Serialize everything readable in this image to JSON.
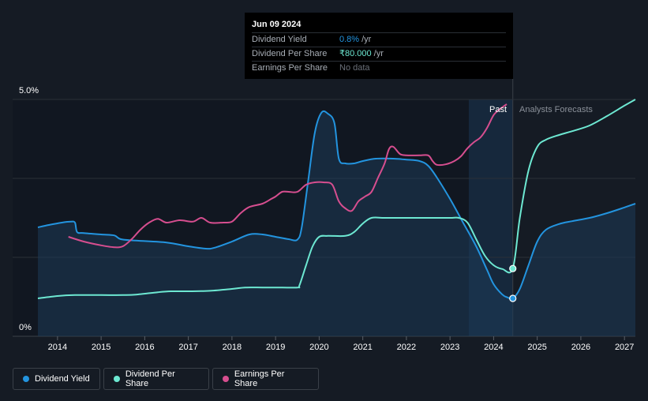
{
  "tooltip": {
    "date": "Jun 09 2024",
    "rows": [
      {
        "label": "Dividend Yield",
        "value": "0.8%",
        "unit": "/yr"
      },
      {
        "label": "Dividend Per Share",
        "value": "₹80.000",
        "unit": "/yr"
      },
      {
        "label": "Earnings Per Share",
        "value": "No data",
        "unit": ""
      }
    ]
  },
  "regions": {
    "past": "Past",
    "forecast": "Analysts Forecasts"
  },
  "legend": [
    {
      "label": "Dividend Yield",
      "color": "#2394df"
    },
    {
      "label": "Dividend Per Share",
      "color": "#6de8d2"
    },
    {
      "label": "Earnings Per Share",
      "color": "#d64e8f"
    }
  ],
  "chart_data": {
    "type": "line",
    "y_tick_labels": [
      "5.0%",
      "0%"
    ],
    "ylim": [
      0,
      5
    ],
    "xlim": [
      2013.55,
      2027.25
    ],
    "x_tick_labels": [
      "2014",
      "2015",
      "2016",
      "2017",
      "2018",
      "2019",
      "2020",
      "2021",
      "2022",
      "2023",
      "2024",
      "2025",
      "2026",
      "2027"
    ],
    "x_ticks": [
      2014,
      2015,
      2016,
      2017,
      2018,
      2019,
      2020,
      2021,
      2022,
      2023,
      2024,
      2025,
      2026,
      2027
    ],
    "past_end": 2024.44,
    "shade_start": 2023.43,
    "series": [
      {
        "name": "Dividend Yield",
        "color": "#2394df",
        "fill": true,
        "marker_x": 2024.44,
        "points": [
          [
            2013.55,
            2.3
          ],
          [
            2013.8,
            2.35
          ],
          [
            2014.1,
            2.4
          ],
          [
            2014.3,
            2.42
          ],
          [
            2014.4,
            2.4
          ],
          [
            2014.45,
            2.2
          ],
          [
            2014.6,
            2.18
          ],
          [
            2015.0,
            2.15
          ],
          [
            2015.3,
            2.13
          ],
          [
            2015.45,
            2.05
          ],
          [
            2015.8,
            2.02
          ],
          [
            2016.5,
            1.98
          ],
          [
            2017.0,
            1.9
          ],
          [
            2017.4,
            1.85
          ],
          [
            2017.6,
            1.87
          ],
          [
            2018.0,
            2.0
          ],
          [
            2018.4,
            2.15
          ],
          [
            2018.7,
            2.15
          ],
          [
            2019.0,
            2.1
          ],
          [
            2019.3,
            2.05
          ],
          [
            2019.5,
            2.04
          ],
          [
            2019.6,
            2.3
          ],
          [
            2019.75,
            3.3
          ],
          [
            2019.9,
            4.3
          ],
          [
            2020.05,
            4.72
          ],
          [
            2020.2,
            4.7
          ],
          [
            2020.35,
            4.5
          ],
          [
            2020.45,
            3.75
          ],
          [
            2020.6,
            3.65
          ],
          [
            2020.8,
            3.65
          ],
          [
            2021.0,
            3.7
          ],
          [
            2021.3,
            3.75
          ],
          [
            2021.7,
            3.75
          ],
          [
            2022.0,
            3.73
          ],
          [
            2022.3,
            3.7
          ],
          [
            2022.5,
            3.6
          ],
          [
            2022.7,
            3.35
          ],
          [
            2023.0,
            2.9
          ],
          [
            2023.3,
            2.4
          ],
          [
            2023.6,
            1.9
          ],
          [
            2023.85,
            1.4
          ],
          [
            2024.0,
            1.1
          ],
          [
            2024.2,
            0.88
          ],
          [
            2024.32,
            0.82
          ],
          [
            2024.44,
            0.8
          ],
          [
            2024.6,
            1.0
          ],
          [
            2024.8,
            1.5
          ],
          [
            2025.0,
            2.0
          ],
          [
            2025.2,
            2.25
          ],
          [
            2025.5,
            2.37
          ],
          [
            2025.8,
            2.43
          ],
          [
            2026.2,
            2.5
          ],
          [
            2026.6,
            2.6
          ],
          [
            2027.0,
            2.72
          ],
          [
            2027.25,
            2.8
          ]
        ]
      },
      {
        "name": "Dividend Per Share",
        "color": "#6de8d2",
        "fill": false,
        "marker_x": 2024.44,
        "points": [
          [
            2013.55,
            0.8
          ],
          [
            2014.0,
            0.85
          ],
          [
            2014.4,
            0.87
          ],
          [
            2015.0,
            0.87
          ],
          [
            2015.5,
            0.87
          ],
          [
            2015.8,
            0.88
          ],
          [
            2016.3,
            0.93
          ],
          [
            2016.6,
            0.95
          ],
          [
            2017.0,
            0.95
          ],
          [
            2017.5,
            0.96
          ],
          [
            2018.0,
            1.0
          ],
          [
            2018.3,
            1.03
          ],
          [
            2018.7,
            1.03
          ],
          [
            2019.0,
            1.03
          ],
          [
            2019.5,
            1.03
          ],
          [
            2019.55,
            1.08
          ],
          [
            2019.7,
            1.5
          ],
          [
            2019.85,
            1.9
          ],
          [
            2020.0,
            2.1
          ],
          [
            2020.2,
            2.12
          ],
          [
            2020.6,
            2.12
          ],
          [
            2020.8,
            2.2
          ],
          [
            2021.0,
            2.38
          ],
          [
            2021.2,
            2.5
          ],
          [
            2021.5,
            2.5
          ],
          [
            2022.0,
            2.5
          ],
          [
            2022.5,
            2.5
          ],
          [
            2023.0,
            2.5
          ],
          [
            2023.2,
            2.5
          ],
          [
            2023.4,
            2.4
          ],
          [
            2023.6,
            2.05
          ],
          [
            2023.8,
            1.7
          ],
          [
            2024.0,
            1.5
          ],
          [
            2024.2,
            1.42
          ],
          [
            2024.44,
            1.43
          ],
          [
            2024.6,
            2.5
          ],
          [
            2024.8,
            3.5
          ],
          [
            2025.0,
            4.0
          ],
          [
            2025.2,
            4.15
          ],
          [
            2025.5,
            4.25
          ],
          [
            2025.8,
            4.33
          ],
          [
            2026.2,
            4.45
          ],
          [
            2026.6,
            4.65
          ],
          [
            2027.0,
            4.87
          ],
          [
            2027.25,
            5.0
          ]
        ]
      },
      {
        "name": "Earnings Per Share",
        "color": "#d64e8f",
        "fill": false,
        "points": [
          [
            2014.25,
            2.1
          ],
          [
            2014.6,
            2.0
          ],
          [
            2015.0,
            1.92
          ],
          [
            2015.3,
            1.88
          ],
          [
            2015.5,
            1.9
          ],
          [
            2015.7,
            2.05
          ],
          [
            2015.9,
            2.25
          ],
          [
            2016.1,
            2.4
          ],
          [
            2016.3,
            2.48
          ],
          [
            2016.5,
            2.4
          ],
          [
            2016.8,
            2.45
          ],
          [
            2017.1,
            2.42
          ],
          [
            2017.3,
            2.5
          ],
          [
            2017.5,
            2.4
          ],
          [
            2017.8,
            2.4
          ],
          [
            2018.0,
            2.42
          ],
          [
            2018.2,
            2.6
          ],
          [
            2018.4,
            2.73
          ],
          [
            2018.7,
            2.8
          ],
          [
            2018.9,
            2.9
          ],
          [
            2019.0,
            2.95
          ],
          [
            2019.15,
            3.05
          ],
          [
            2019.3,
            3.05
          ],
          [
            2019.5,
            3.05
          ],
          [
            2019.7,
            3.2
          ],
          [
            2019.9,
            3.25
          ],
          [
            2020.1,
            3.25
          ],
          [
            2020.3,
            3.2
          ],
          [
            2020.45,
            2.85
          ],
          [
            2020.6,
            2.7
          ],
          [
            2020.75,
            2.65
          ],
          [
            2020.9,
            2.85
          ],
          [
            2021.05,
            2.95
          ],
          [
            2021.2,
            3.05
          ],
          [
            2021.35,
            3.35
          ],
          [
            2021.5,
            3.65
          ],
          [
            2021.6,
            3.95
          ],
          [
            2021.7,
            4.0
          ],
          [
            2021.85,
            3.85
          ],
          [
            2022.0,
            3.82
          ],
          [
            2022.3,
            3.82
          ],
          [
            2022.5,
            3.82
          ],
          [
            2022.6,
            3.7
          ],
          [
            2022.7,
            3.62
          ],
          [
            2022.9,
            3.63
          ],
          [
            2023.1,
            3.7
          ],
          [
            2023.25,
            3.8
          ],
          [
            2023.4,
            3.97
          ],
          [
            2023.55,
            4.1
          ],
          [
            2023.7,
            4.2
          ],
          [
            2023.85,
            4.4
          ],
          [
            2024.0,
            4.67
          ],
          [
            2024.15,
            4.8
          ],
          [
            2024.3,
            4.9
          ]
        ]
      }
    ]
  }
}
